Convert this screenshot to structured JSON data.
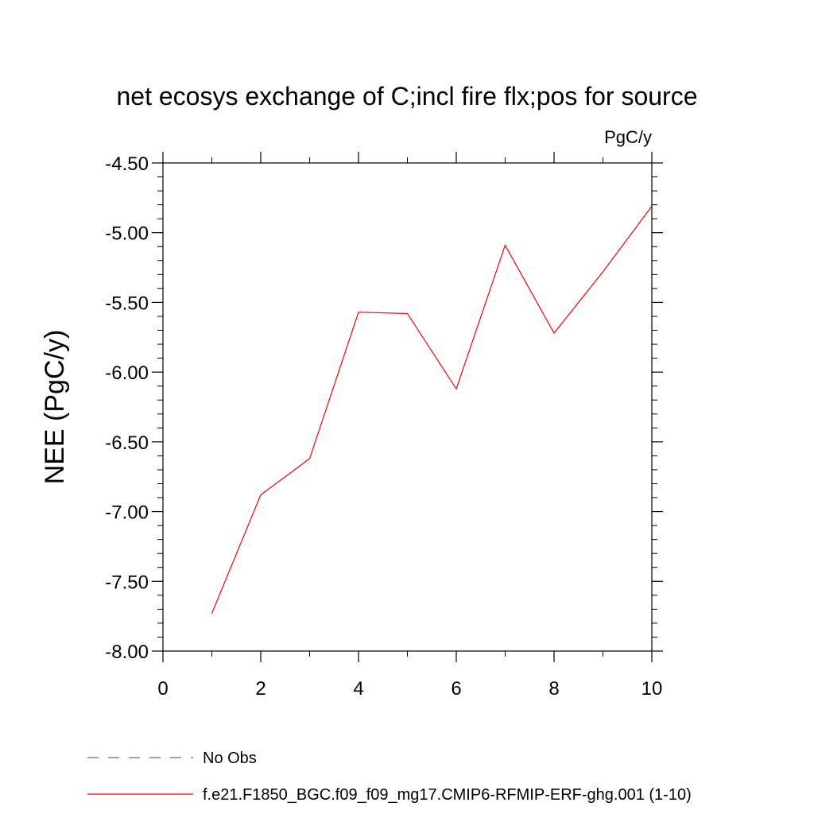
{
  "chart_data": {
    "type": "line",
    "title": "net ecosys exchange of C;incl fire flx;pos for source",
    "units_label": "PgC/y",
    "xlabel": "",
    "ylabel": "NEE  (PgC/y)",
    "xlim": [
      0,
      10
    ],
    "ylim": [
      -8.0,
      -4.5
    ],
    "x_ticks": [
      0,
      2,
      4,
      6,
      8,
      10
    ],
    "x_tick_labels": [
      "0",
      "2",
      "4",
      "6",
      "8",
      "10"
    ],
    "y_ticks": [
      -8.0,
      -7.5,
      -7.0,
      -6.5,
      -6.0,
      -5.5,
      -5.0,
      -4.5
    ],
    "y_tick_labels": [
      "-8.00",
      "-7.50",
      "-7.00",
      "-6.50",
      "-6.00",
      "-5.50",
      "-5.00",
      "-4.50"
    ],
    "grid": false,
    "legend_position": "bottom",
    "series": [
      {
        "name": "f.e21.F1850_BGC.f09_f09_mg17.CMIP6-RFMIP-ERF-ghg.001 (1-10)",
        "color": "#ff0000",
        "style": "solid",
        "x": [
          1,
          2,
          3,
          4,
          5,
          6,
          7,
          8,
          9,
          10
        ],
        "values": [
          -7.73,
          -6.88,
          -6.62,
          -5.57,
          -5.58,
          -6.12,
          -5.09,
          -5.72,
          -5.28,
          -4.81
        ]
      },
      {
        "name": "No Obs",
        "color": "#6a5acd",
        "style": "dashed",
        "x": [],
        "values": []
      }
    ]
  }
}
